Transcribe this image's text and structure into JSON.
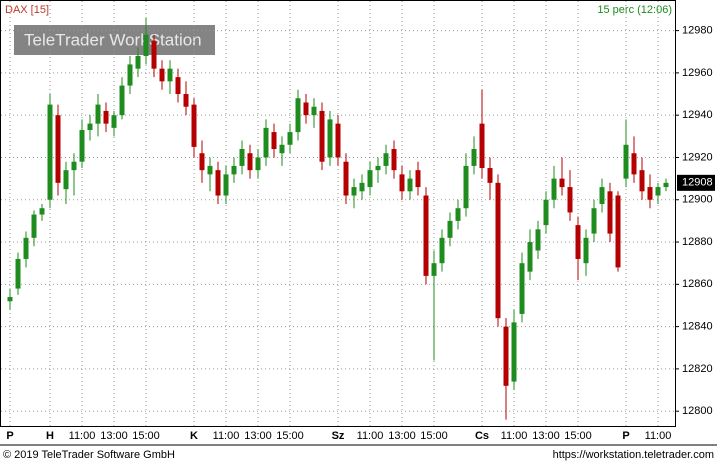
{
  "chart_data": {
    "type": "candlestick",
    "title": "DAX [15]",
    "subtitle": "15 perc (12:06)",
    "watermark": "TeleTrader WorkStation",
    "categories": [
      "P",
      null,
      null,
      null,
      null,
      "H",
      null,
      null,
      null,
      "11:00",
      null,
      null,
      null,
      "13:00",
      null,
      null,
      null,
      "15:00",
      null,
      null,
      null,
      null,
      null,
      "K",
      null,
      null,
      null,
      "11:00",
      null,
      null,
      null,
      "13:00",
      null,
      null,
      null,
      "15:00",
      null,
      null,
      null,
      null,
      null,
      "Sz",
      null,
      null,
      null,
      "11:00",
      null,
      null,
      null,
      "13:00",
      null,
      null,
      null,
      "15:00",
      null,
      null,
      null,
      null,
      null,
      "Cs",
      null,
      null,
      null,
      "11:00",
      null,
      null,
      null,
      "13:00",
      null,
      null,
      null,
      "15:00",
      null,
      null,
      null,
      null,
      null,
      "P",
      null,
      null,
      null,
      "11:00",
      null
    ],
    "open": [
      12852,
      12858,
      12872,
      12882,
      12893,
      12900,
      12940,
      12905,
      12914,
      12918,
      12933,
      12936,
      12942,
      12934,
      12940,
      12954,
      12962,
      12968,
      12975,
      12962,
      12956,
      12958,
      12950,
      12945,
      12922,
      12912,
      12914,
      12902,
      12912,
      12916,
      12922,
      12914,
      12920,
      12932,
      12922,
      12926,
      12932,
      12946,
      12940,
      12942,
      12920,
      12936,
      12918,
      12902,
      12904,
      12906,
      12914,
      12916,
      12924,
      12912,
      12904,
      12914,
      12902,
      12864,
      12870,
      12882,
      12890,
      12896,
      12916,
      12936,
      12915,
      12908,
      12840,
      12814,
      12846,
      12866,
      12876,
      12888,
      12900,
      12910,
      12906,
      12888,
      12870,
      12884,
      12898,
      12904,
      12902,
      12910,
      12922,
      12914,
      12906,
      12902,
      12906
    ],
    "high": [
      12858,
      12875,
      12885,
      12895,
      12898,
      12950,
      12945,
      12918,
      12922,
      12938,
      12940,
      12950,
      12946,
      12942,
      12958,
      12968,
      12972,
      12986,
      12978,
      12966,
      12966,
      12962,
      12956,
      12948,
      12928,
      12920,
      12918,
      12916,
      12920,
      12928,
      12926,
      12924,
      12938,
      12936,
      12930,
      12936,
      12952,
      12950,
      12948,
      12946,
      12942,
      12940,
      12922,
      12910,
      12912,
      12918,
      12920,
      12926,
      12928,
      12916,
      12914,
      12918,
      12906,
      12876,
      12886,
      12894,
      12900,
      12922,
      12930,
      12952,
      12920,
      12912,
      12844,
      12848,
      12875,
      12886,
      12890,
      12904,
      12916,
      12920,
      12914,
      12892,
      12886,
      12900,
      12910,
      12908,
      12904,
      12938,
      12930,
      12920,
      12912,
      12908,
      12910
    ],
    "low": [
      12848,
      12855,
      12868,
      12878,
      12890,
      12896,
      12902,
      12898,
      12902,
      12915,
      12928,
      12930,
      12932,
      12930,
      12938,
      12950,
      12958,
      12964,
      12958,
      12952,
      12950,
      12946,
      12940,
      12920,
      12908,
      12904,
      12898,
      12898,
      12908,
      12912,
      12910,
      12910,
      12916,
      12920,
      12916,
      12922,
      12928,
      12936,
      12934,
      12914,
      12916,
      12916,
      12898,
      12896,
      12900,
      12902,
      12908,
      12912,
      12910,
      12900,
      12900,
      12902,
      12860,
      12824,
      12866,
      12878,
      12886,
      12892,
      12912,
      12910,
      12900,
      12840,
      12796,
      12810,
      12842,
      12862,
      12872,
      12884,
      12896,
      12902,
      12890,
      12862,
      12864,
      12880,
      12894,
      12880,
      12866,
      12906,
      12908,
      12900,
      12896,
      12898,
      12904
    ],
    "close": [
      12854,
      12872,
      12882,
      12893,
      12896,
      12945,
      12908,
      12914,
      12918,
      12933,
      12936,
      12945,
      12936,
      12940,
      12954,
      12964,
      12968,
      12978,
      12962,
      12956,
      12962,
      12950,
      12944,
      12925,
      12914,
      12916,
      12902,
      12912,
      12916,
      12924,
      12914,
      12920,
      12934,
      12924,
      12926,
      12932,
      12948,
      12940,
      12944,
      12918,
      12938,
      12920,
      12902,
      12906,
      12908,
      12914,
      12916,
      12922,
      12914,
      12904,
      12910,
      12906,
      12864,
      12870,
      12882,
      12890,
      12896,
      12916,
      12924,
      12915,
      12908,
      12844,
      12812,
      12842,
      12870,
      12880,
      12886,
      12900,
      12910,
      12906,
      12894,
      12872,
      12882,
      12896,
      12906,
      12884,
      12868,
      12926,
      12912,
      12904,
      12900,
      12906,
      12908
    ],
    "up_color": "#1e8c1e",
    "down_color": "#b40000",
    "last_price": 12908,
    "ylim": [
      12793,
      12994
    ],
    "yticks": [
      12800,
      12820,
      12840,
      12860,
      12880,
      12900,
      12920,
      12940,
      12960,
      12980
    ],
    "grid": true
  },
  "footer": {
    "copyright": "© 2019 TeleTrader Software GmbH",
    "url": "https://workstation.teletrader.com"
  }
}
